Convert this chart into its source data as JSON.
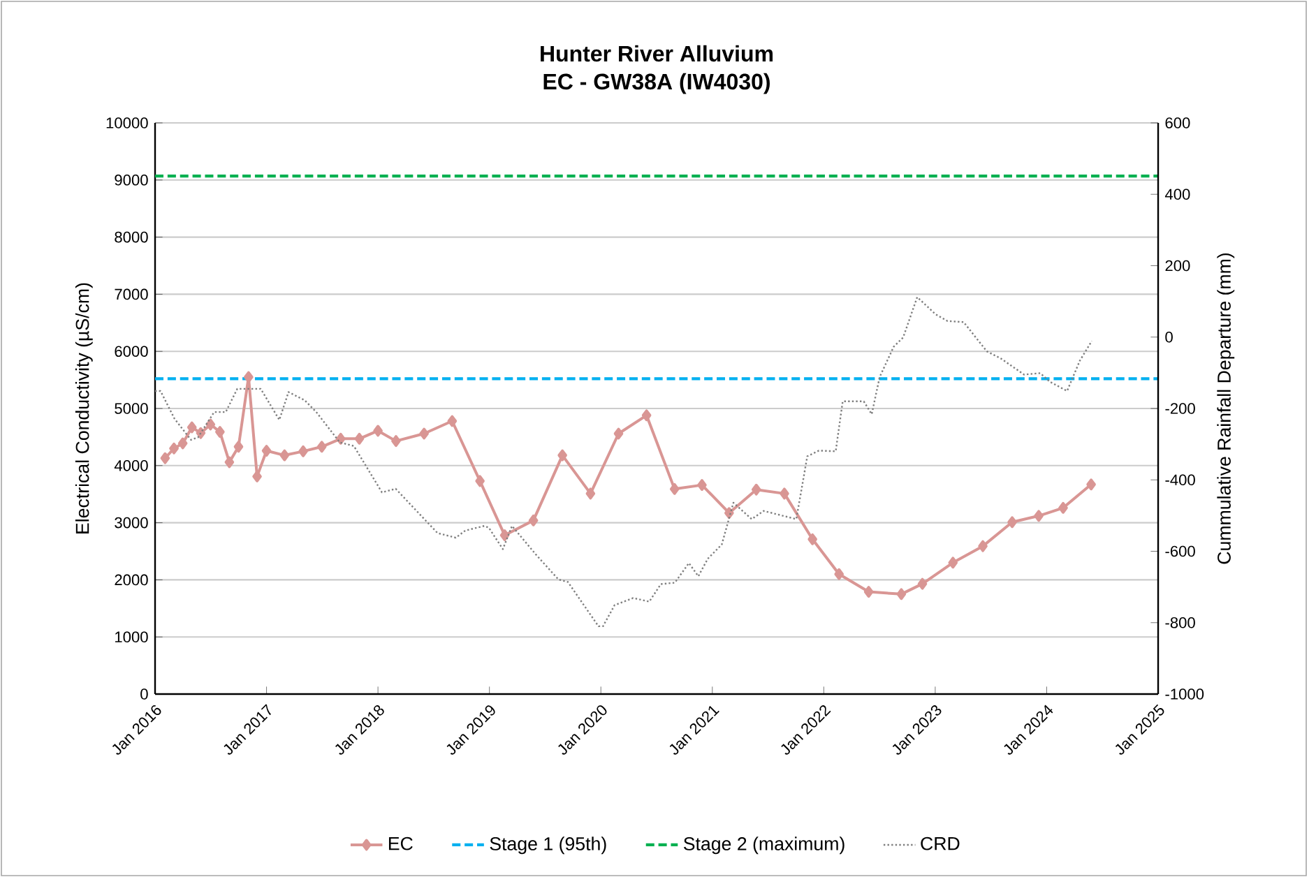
{
  "chart_data": {
    "type": "line",
    "title": "Hunter River Alluvium",
    "subtitle": "EC - GW38A (IW4030)",
    "ylabel": "Electrical Conductivity (µS/cm)",
    "y2label": "Cummulative Rainfall Departure (mm)",
    "xlim": [
      "2016-01",
      "2025-01"
    ],
    "xticks": [
      {
        "value": "2016-01",
        "label": "Jan 2016"
      },
      {
        "value": "2017-01",
        "label": "Jan 2017"
      },
      {
        "value": "2018-01",
        "label": "Jan 2018"
      },
      {
        "value": "2019-01",
        "label": "Jan 2019"
      },
      {
        "value": "2020-01",
        "label": "Jan 2020"
      },
      {
        "value": "2021-01",
        "label": "Jan 2021"
      },
      {
        "value": "2022-01",
        "label": "Jan 2022"
      },
      {
        "value": "2023-01",
        "label": "Jan 2023"
      },
      {
        "value": "2024-01",
        "label": "Jan 2024"
      },
      {
        "value": "2025-01",
        "label": "Jan 2025"
      }
    ],
    "ylim": [
      0,
      10000
    ],
    "yticks": [
      0,
      1000,
      2000,
      3000,
      4000,
      5000,
      6000,
      7000,
      8000,
      9000,
      10000
    ],
    "y2lim": [
      -1000,
      600
    ],
    "y2ticks": [
      -1000,
      -800,
      -600,
      -400,
      -200,
      0,
      200,
      400,
      600
    ],
    "grid": "y",
    "legend": "bottom",
    "ref_lines": [
      {
        "axis": "y",
        "value": 5520,
        "label": "Stage 1 (95th)",
        "color": "#00b0f0",
        "line_style": "dashed"
      },
      {
        "axis": "y",
        "value": 9070,
        "label": "Stage 2 (maximum)",
        "color": "#00b050",
        "line_style": "dashed"
      }
    ],
    "series": [
      {
        "name": "EC",
        "color": "#d99694",
        "marker": "diamond",
        "line_style": "solid",
        "x": [
          "2016-02-03",
          "2016-03-03",
          "2016-04-01",
          "2016-05-01",
          "2016-05-30",
          "2016-07-01",
          "2016-08-01",
          "2016-09-01",
          "2016-10-01",
          "2016-11-03",
          "2016-12-01",
          "2017-01-01",
          "2017-03-01",
          "2017-05-01",
          "2017-07-01",
          "2017-09-01",
          "2017-11-01",
          "2018-01-01",
          "2018-03-01",
          "2018-06-01",
          "2018-09-01",
          "2018-12-01",
          "2019-02-20",
          "2019-05-25",
          "2019-08-28",
          "2019-11-28",
          "2020-02-28",
          "2020-05-30",
          "2020-08-30",
          "2020-11-28",
          "2021-02-25",
          "2021-05-25",
          "2021-08-25",
          "2021-11-25",
          "2022-02-20",
          "2022-05-28",
          "2022-09-12",
          "2022-11-20",
          "2023-02-28",
          "2023-06-06",
          "2023-09-10",
          "2023-12-06",
          "2024-02-24",
          "2024-05-26"
        ],
        "values": [
          4130,
          4300,
          4390,
          4670,
          4570,
          4720,
          4590,
          4060,
          4330,
          5550,
          3810,
          4260,
          4180,
          4250,
          4330,
          4470,
          4470,
          4610,
          4430,
          4560,
          4780,
          3730,
          2780,
          3040,
          4180,
          3510,
          4560,
          4880,
          3590,
          3660,
          3170,
          3580,
          3510,
          2710,
          2100,
          1790,
          1750,
          1930,
          2300,
          2590,
          3010,
          3120,
          3260,
          3670
        ]
      },
      {
        "name": "CRD",
        "color": "#7f7f7f",
        "marker": "none",
        "line_style": "dotted",
        "axis": "y2",
        "x": [
          "2016-01-01",
          "2016-01-19",
          "2016-03-05",
          "2016-04-28",
          "2016-05-21",
          "2016-07-13",
          "2016-08-20",
          "2016-09-27",
          "2016-12-13",
          "2017-02-12",
          "2017-03-14",
          "2017-05-06",
          "2017-06-13",
          "2017-08-29",
          "2017-10-14",
          "2018-01-14",
          "2018-02-28",
          "2018-07-15",
          "2018-09-13",
          "2018-10-14",
          "2018-12-15",
          "2018-12-30",
          "2019-02-14",
          "2019-03-16",
          "2019-06-01",
          "2019-08-15",
          "2019-09-15",
          "2019-12-24",
          "2020-01-08",
          "2020-02-15",
          "2020-04-16",
          "2020-06-08",
          "2020-07-16",
          "2020-08-31",
          "2020-10-16",
          "2020-11-16",
          "2020-12-17",
          "2021-02-01",
          "2021-03-11",
          "2021-05-10",
          "2021-06-18",
          "2021-10-03",
          "2021-11-08",
          "2021-12-16",
          "2022-02-09",
          "2022-03-04",
          "2022-05-12",
          "2022-06-07",
          "2022-07-03",
          "2022-08-18",
          "2022-09-18",
          "2022-11-03",
          "2023-01-02",
          "2023-02-10",
          "2023-04-04",
          "2023-06-19",
          "2023-08-04",
          "2023-10-19",
          "2023-12-11",
          "2024-01-11",
          "2024-03-08",
          "2024-04-19",
          "2024-05-28"
        ],
        "values": [
          -151,
          -151,
          -229,
          -288,
          -281,
          -210,
          -210,
          -145,
          -145,
          -232,
          -154,
          -177,
          -210,
          -295,
          -305,
          -435,
          -425,
          -549,
          -562,
          -542,
          -529,
          -534,
          -594,
          -529,
          -608,
          -679,
          -686,
          -810,
          -810,
          -751,
          -731,
          -741,
          -692,
          -688,
          -633,
          -670,
          -621,
          -581,
          -464,
          -510,
          -487,
          -510,
          -334,
          -318,
          -320,
          -180,
          -180,
          -216,
          -112,
          -27,
          -1,
          112,
          64,
          45,
          42,
          -40,
          -60,
          -105,
          -101,
          -125,
          -151,
          -66,
          -11
        ]
      }
    ]
  }
}
